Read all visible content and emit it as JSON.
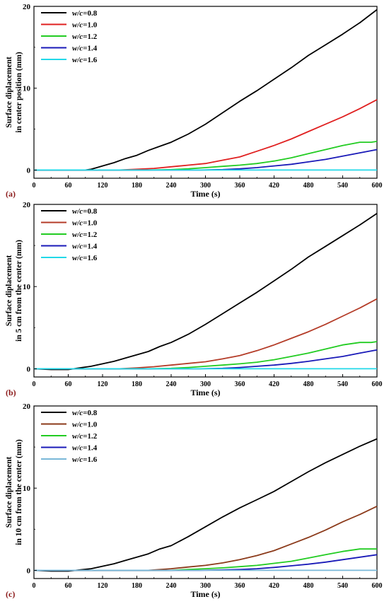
{
  "chart_data": [
    {
      "type": "line",
      "panel_label": "(a)",
      "ylabel_lines": [
        "Surface diplacement",
        "in center position (mm)"
      ],
      "xlabel": "Time (s)",
      "xlim": [
        0,
        600
      ],
      "ylim": [
        -1,
        20
      ],
      "xticks": [
        0,
        60,
        120,
        180,
        240,
        300,
        360,
        420,
        480,
        540,
        600
      ],
      "yticks": [
        0,
        10,
        20
      ],
      "legend_position": "top-left",
      "series": [
        {
          "name": "w/c=0.8",
          "color": "#000000",
          "x": [
            0,
            90,
            100,
            110,
            120,
            140,
            160,
            180,
            200,
            220,
            240,
            270,
            300,
            330,
            360,
            390,
            420,
            450,
            480,
            510,
            540,
            570,
            600
          ],
          "y": [
            0,
            0,
            0.1,
            0.3,
            0.5,
            0.9,
            1.4,
            1.8,
            2.4,
            2.9,
            3.4,
            4.4,
            5.6,
            7.0,
            8.4,
            9.7,
            11.1,
            12.5,
            14.0,
            15.3,
            16.6,
            18.0,
            19.6
          ]
        },
        {
          "name": "w/c=1.0",
          "color": "#e02020",
          "x": [
            0,
            150,
            180,
            210,
            240,
            270,
            300,
            330,
            360,
            390,
            420,
            450,
            480,
            510,
            540,
            570,
            600
          ],
          "y": [
            0,
            0,
            0.1,
            0.2,
            0.4,
            0.6,
            0.8,
            1.2,
            1.6,
            2.3,
            3.0,
            3.8,
            4.7,
            5.6,
            6.5,
            7.5,
            8.6
          ]
        },
        {
          "name": "w/c=1.2",
          "color": "#22cc22",
          "x": [
            0,
            200,
            240,
            270,
            300,
            330,
            360,
            390,
            420,
            450,
            480,
            510,
            540,
            570,
            590,
            600
          ],
          "y": [
            0,
            0,
            0.05,
            0.15,
            0.3,
            0.45,
            0.6,
            0.8,
            1.1,
            1.5,
            2.0,
            2.5,
            3.0,
            3.4,
            3.4,
            3.5
          ]
        },
        {
          "name": "w/c=1.4",
          "color": "#1a1ab8",
          "x": [
            0,
            290,
            330,
            360,
            390,
            420,
            450,
            480,
            510,
            540,
            570,
            600
          ],
          "y": [
            0,
            0,
            0.05,
            0.15,
            0.3,
            0.5,
            0.7,
            1.0,
            1.3,
            1.7,
            2.1,
            2.5
          ]
        },
        {
          "name": "w/c=1.6",
          "color": "#22d8e8",
          "x": [
            0,
            600
          ],
          "y": [
            0,
            0
          ]
        }
      ]
    },
    {
      "type": "line",
      "panel_label": "(b)",
      "ylabel_lines": [
        "Surface diplacement",
        "in 5 cm from the center (mm)"
      ],
      "xlabel": "Time (s)",
      "xlim": [
        0,
        600
      ],
      "ylim": [
        -1,
        20
      ],
      "xticks": [
        0,
        60,
        120,
        180,
        240,
        300,
        360,
        420,
        480,
        540,
        600
      ],
      "yticks": [
        0,
        10,
        20
      ],
      "legend_position": "top-left",
      "series": [
        {
          "name": "w/c=0.8",
          "color": "#000000",
          "x": [
            0,
            30,
            60,
            80,
            100,
            120,
            140,
            160,
            180,
            200,
            220,
            240,
            270,
            300,
            330,
            360,
            390,
            420,
            450,
            480,
            510,
            540,
            570,
            600
          ],
          "y": [
            0,
            -0.1,
            -0.1,
            0.1,
            0.3,
            0.6,
            0.9,
            1.3,
            1.7,
            2.1,
            2.7,
            3.2,
            4.2,
            5.4,
            6.7,
            8.0,
            9.3,
            10.7,
            12.1,
            13.6,
            14.9,
            16.2,
            17.5,
            18.9
          ]
        },
        {
          "name": "w/c=1.0",
          "color": "#b43c28",
          "x": [
            0,
            150,
            180,
            210,
            240,
            270,
            300,
            330,
            360,
            390,
            420,
            450,
            480,
            510,
            540,
            570,
            600
          ],
          "y": [
            0,
            0,
            0.1,
            0.25,
            0.45,
            0.65,
            0.85,
            1.2,
            1.6,
            2.2,
            2.9,
            3.7,
            4.5,
            5.4,
            6.4,
            7.4,
            8.5
          ]
        },
        {
          "name": "w/c=1.2",
          "color": "#22cc22",
          "x": [
            0,
            200,
            240,
            270,
            300,
            330,
            360,
            390,
            420,
            450,
            480,
            510,
            540,
            570,
            590,
            600
          ],
          "y": [
            0,
            0,
            0.05,
            0.15,
            0.3,
            0.45,
            0.6,
            0.8,
            1.1,
            1.5,
            1.9,
            2.4,
            2.9,
            3.2,
            3.2,
            3.3
          ]
        },
        {
          "name": "w/c=1.4",
          "color": "#1a1ab8",
          "x": [
            0,
            290,
            330,
            360,
            390,
            420,
            450,
            480,
            510,
            540,
            570,
            600
          ],
          "y": [
            0,
            0,
            0.05,
            0.15,
            0.3,
            0.45,
            0.65,
            0.9,
            1.2,
            1.5,
            1.9,
            2.3
          ]
        },
        {
          "name": "w/c=1.6",
          "color": "#22d8e8",
          "x": [
            0,
            600
          ],
          "y": [
            0,
            0
          ]
        }
      ]
    },
    {
      "type": "line",
      "panel_label": "(c)",
      "ylabel_lines": [
        "Surface diplacement",
        "in 10 cm from the center (mm)"
      ],
      "xlabel": "Time (s)",
      "xlim": [
        0,
        600
      ],
      "ylim": [
        -1,
        20
      ],
      "xticks": [
        0,
        60,
        120,
        180,
        240,
        300,
        360,
        420,
        480,
        540,
        600
      ],
      "yticks": [
        0,
        10,
        20
      ],
      "legend_position": "top-left",
      "series": [
        {
          "name": "w/c=0.8",
          "color": "#000000",
          "x": [
            0,
            30,
            60,
            80,
            100,
            120,
            140,
            160,
            180,
            200,
            220,
            240,
            270,
            300,
            330,
            360,
            390,
            420,
            450,
            480,
            510,
            540,
            570,
            600
          ],
          "y": [
            0,
            -0.1,
            -0.1,
            0.05,
            0.2,
            0.5,
            0.8,
            1.2,
            1.6,
            2.0,
            2.6,
            3.0,
            4.1,
            5.3,
            6.5,
            7.6,
            8.6,
            9.6,
            10.8,
            12.0,
            13.1,
            14.1,
            15.1,
            16.0
          ]
        },
        {
          "name": "w/c=1.0",
          "color": "#8b3a1a",
          "x": [
            0,
            200,
            240,
            270,
            300,
            330,
            360,
            390,
            420,
            450,
            480,
            510,
            540,
            570,
            600
          ],
          "y": [
            0,
            0,
            0.2,
            0.4,
            0.6,
            0.9,
            1.3,
            1.8,
            2.4,
            3.2,
            4.0,
            4.9,
            5.9,
            6.8,
            7.8
          ]
        },
        {
          "name": "w/c=1.2",
          "color": "#22cc22",
          "x": [
            0,
            240,
            270,
            300,
            330,
            360,
            390,
            420,
            450,
            480,
            510,
            540,
            570,
            600
          ],
          "y": [
            0,
            0,
            0.1,
            0.2,
            0.3,
            0.45,
            0.6,
            0.85,
            1.1,
            1.5,
            1.9,
            2.3,
            2.6,
            2.6
          ]
        },
        {
          "name": "w/c=1.4",
          "color": "#1a1ab8",
          "x": [
            0,
            290,
            330,
            360,
            390,
            420,
            450,
            480,
            510,
            540,
            570,
            600
          ],
          "y": [
            0,
            0,
            0.05,
            0.1,
            0.2,
            0.35,
            0.55,
            0.75,
            1.0,
            1.3,
            1.6,
            1.9
          ]
        },
        {
          "name": "w/c=1.6",
          "color": "#7ab8d8",
          "x": [
            0,
            600
          ],
          "y": [
            0,
            0
          ]
        }
      ]
    }
  ]
}
